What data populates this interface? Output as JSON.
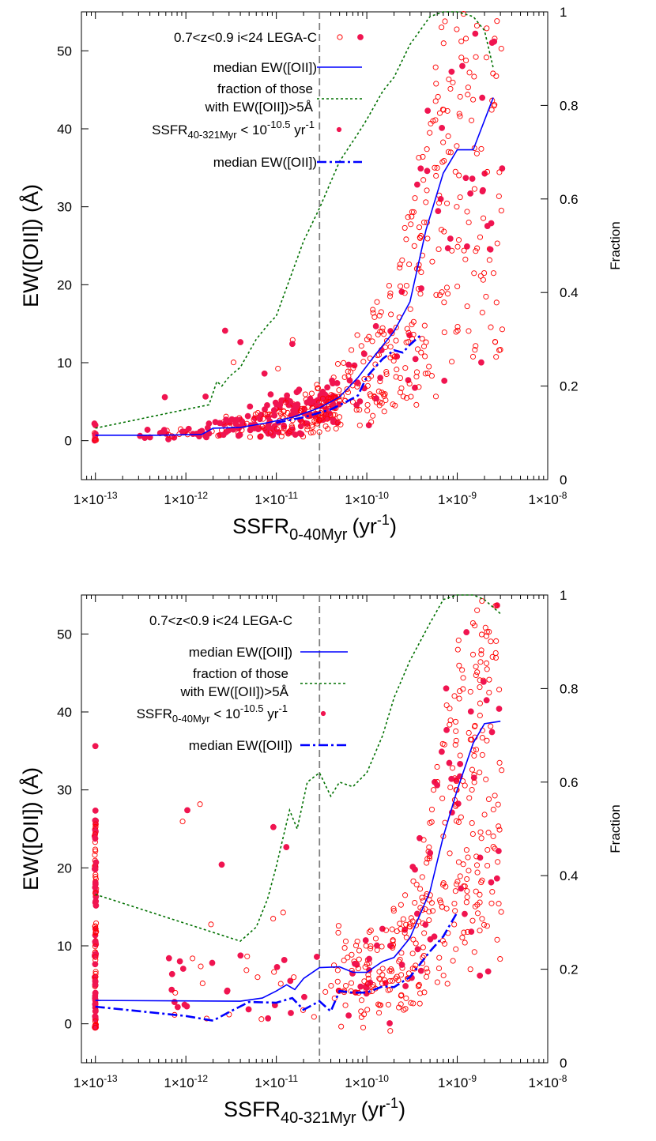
{
  "chart_data": [
    {
      "type": "scatter",
      "xlabel": "SSFR0-40Myr (yr-1)",
      "xlabel_main": "SSFR",
      "xlabel_sub": "0-40Myr",
      "xlabel_unit": "(yr",
      "xlabel_sup": "-1",
      "xlabel_close": ")",
      "ylabel": "EW([OII]) (Å)",
      "y2label": "Fraction",
      "x_scale": "log",
      "xlim": [
        7e-14,
        1e-08
      ],
      "ylim": [
        -5,
        55
      ],
      "y2lim": [
        0,
        1
      ],
      "x_tick_values": [
        1e-13,
        1e-12,
        1e-11,
        1e-10,
        1e-09,
        1e-08
      ],
      "x_tick_labels": [
        {
          "base": "1×10",
          "exp": "-13"
        },
        {
          "base": "1×10",
          "exp": "-12"
        },
        {
          "base": "1×10",
          "exp": "-11"
        },
        {
          "base": "1×10",
          "exp": "-10"
        },
        {
          "base": "1×10",
          "exp": "-9"
        },
        {
          "base": "1×10",
          "exp": "-8"
        }
      ],
      "y_ticks": [
        0,
        10,
        20,
        30,
        40,
        50
      ],
      "y_tick_labels": [
        "0",
        "10",
        "20",
        "30",
        "40",
        "50"
      ],
      "y2_ticks": [
        0,
        0.2,
        0.4,
        0.6,
        0.8,
        1
      ],
      "y2_tick_labels": [
        "0",
        "0.2",
        "0.4",
        "0.6",
        "0.8",
        "1"
      ],
      "vline_x": 3e-11,
      "legend_position": "top-center",
      "legend": {
        "l1": "0.7<z<0.9 i<24 LEGA-C",
        "l2": "median EW([OII])",
        "l3a": "fraction of those",
        "l3b": "with EW([OII])>5Å",
        "l4_main": "SSFR",
        "l4_sub": "40-321Myr",
        "l4_mid": " < 10",
        "l4_sup": "-10.5",
        "l4_end": " yr",
        "l4_sup2": "-1",
        "l5": "median EW([OII])"
      },
      "series": [
        {
          "name": "median EW([OII])",
          "style": "solid",
          "color": "#0000ff",
          "x": [
            1e-13,
            5e-13,
            1.5e-12,
            2e-12,
            4e-12,
            8e-12,
            1.5e-11,
            3e-11,
            5e-11,
            8e-11,
            1.2e-10,
            2e-10,
            3e-10,
            4.5e-10,
            7e-10,
            1e-09,
            1.5e-09,
            2.5e-09
          ],
          "y": [
            0.7,
            0.7,
            0.8,
            1.6,
            1.7,
            2.3,
            3.0,
            4.2,
            5.6,
            8.1,
            10.8,
            14.0,
            17.8,
            27.0,
            34.3,
            37.3,
            37.3,
            44.0
          ]
        },
        {
          "name": "median EW([OII])",
          "style": "dashdot",
          "color": "#0000ff",
          "x": [
            1e-11,
            2e-11,
            4e-11,
            6e-11,
            8e-11,
            1e-10,
            1.5e-10,
            2e-10,
            2.5e-10,
            3e-10,
            4e-10
          ],
          "y": [
            2.3,
            3.0,
            4.0,
            5.0,
            5.8,
            8.2,
            10.5,
            11.6,
            11.3,
            12.3,
            13.6
          ]
        },
        {
          "name": "fraction of those with EW([OII])>5Å",
          "style": "dotted",
          "color": "#007000",
          "axis": "y2",
          "x": [
            1e-13,
            1e-12,
            1.8e-12,
            2.2e-12,
            2.5e-12,
            3e-12,
            4e-12,
            6e-12,
            8e-12,
            1e-11,
            2e-11,
            3e-11,
            5e-11,
            8e-11,
            1e-10,
            1.5e-10,
            2e-10,
            3e-10,
            5e-10,
            7e-10,
            1e-09,
            1.5e-09,
            2e-09,
            2.5e-09
          ],
          "y": [
            0.11,
            0.15,
            0.16,
            0.21,
            0.2,
            0.22,
            0.24,
            0.3,
            0.33,
            0.35,
            0.51,
            0.58,
            0.68,
            0.74,
            0.77,
            0.83,
            0.86,
            0.93,
            0.99,
            1.0,
            1.0,
            0.99,
            0.96,
            0.88
          ]
        }
      ]
    },
    {
      "type": "scatter",
      "xlabel": "SSFR40-321Myr (yr-1)",
      "xlabel_main": "SSFR",
      "xlabel_sub": "40-321Myr",
      "xlabel_unit": "(yr",
      "xlabel_sup": "-1",
      "xlabel_close": ")",
      "ylabel": "EW([OII]) (Å)",
      "y2label": "Fraction",
      "x_scale": "log",
      "xlim": [
        7e-14,
        1e-08
      ],
      "ylim": [
        -5,
        55
      ],
      "y2lim": [
        0,
        1
      ],
      "x_tick_values": [
        1e-13,
        1e-12,
        1e-11,
        1e-10,
        1e-09,
        1e-08
      ],
      "x_tick_labels": [
        {
          "base": "1×10",
          "exp": "-13"
        },
        {
          "base": "1×10",
          "exp": "-12"
        },
        {
          "base": "1×10",
          "exp": "-11"
        },
        {
          "base": "1×10",
          "exp": "-10"
        },
        {
          "base": "1×10",
          "exp": "-9"
        },
        {
          "base": "1×10",
          "exp": "-8"
        }
      ],
      "y_ticks": [
        0,
        10,
        20,
        30,
        40,
        50
      ],
      "y_tick_labels": [
        "0",
        "10",
        "20",
        "30",
        "40",
        "50"
      ],
      "y2_ticks": [
        0,
        0.2,
        0.4,
        0.6,
        0.8,
        1
      ],
      "y2_tick_labels": [
        "0",
        "0.2",
        "0.4",
        "0.6",
        "0.8",
        "1"
      ],
      "vline_x": 3e-11,
      "legend_position": "top-center",
      "legend": {
        "l1": "0.7<z<0.9 i<24 LEGA-C",
        "l2": "median EW([OII])",
        "l3a": "fraction of those",
        "l3b": "with EW([OII])>5Å",
        "l4_main": "SSFR",
        "l4_sub": "0-40Myr",
        "l4_mid": " < 10",
        "l4_sup": "-10.5",
        "l4_end": " yr",
        "l4_sup2": "-1",
        "l5": "median EW([OII])"
      },
      "series": [
        {
          "name": "median EW([OII])",
          "style": "solid",
          "color": "#0000ff",
          "x": [
            1e-13,
            4e-12,
            7e-12,
            1e-11,
            1.3e-11,
            1.6e-11,
            2e-11,
            3e-11,
            5e-11,
            7e-11,
            1e-10,
            1.5e-10,
            2e-10,
            3e-10,
            5e-10,
            7e-10,
            1e-09,
            1.5e-09,
            2e-09,
            3e-09
          ],
          "y": [
            3.0,
            2.9,
            3.3,
            4.2,
            5.0,
            4.4,
            5.8,
            7.2,
            7.3,
            6.6,
            6.6,
            8.0,
            8.5,
            11.0,
            17.0,
            24.0,
            30.0,
            36.0,
            38.5,
            38.8
          ]
        },
        {
          "name": "median EW([OII])",
          "style": "dashdot",
          "color": "#0000ff",
          "x": [
            1e-13,
            1e-12,
            2e-12,
            3e-12,
            5e-12,
            1e-11,
            1.5e-11,
            2e-11,
            3e-11,
            4e-11,
            5e-11,
            7e-11,
            1e-10,
            1.5e-10,
            2e-10,
            3e-10,
            5e-10,
            7e-10,
            1e-09
          ],
          "y": [
            2.2,
            1.0,
            0.4,
            1.5,
            2.8,
            2.7,
            3.3,
            1.8,
            2.9,
            1.6,
            4.2,
            4.0,
            4.0,
            4.8,
            4.7,
            6.0,
            9.3,
            11.2,
            14.3
          ]
        },
        {
          "name": "fraction of those with EW([OII])>5Å",
          "style": "dotted",
          "color": "#007000",
          "axis": "y2",
          "x": [
            1e-13,
            4e-12,
            6e-12,
            8e-12,
            1e-11,
            1.4e-11,
            1.7e-11,
            2.2e-11,
            3e-11,
            4e-11,
            5e-11,
            7e-11,
            1e-10,
            1.5e-10,
            2e-10,
            3e-10,
            5e-10,
            7e-10,
            1e-09,
            1.5e-09,
            2e-09,
            3e-09
          ],
          "y": [
            0.36,
            0.26,
            0.29,
            0.35,
            0.42,
            0.54,
            0.5,
            0.6,
            0.62,
            0.57,
            0.6,
            0.59,
            0.62,
            0.7,
            0.78,
            0.86,
            0.94,
            0.99,
            1.0,
            1.0,
            0.99,
            0.96
          ]
        }
      ]
    }
  ]
}
